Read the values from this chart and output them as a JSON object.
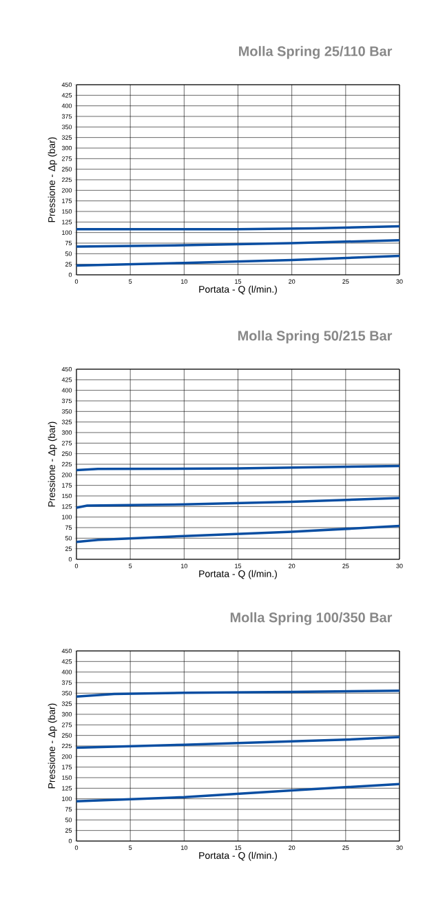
{
  "chart_data": [
    {
      "type": "line",
      "title": "Molla Spring   25/110 Bar",
      "xlabel": "Portata - Q (l/min.)",
      "ylabel": "Pressione -   Δp (bar)",
      "xlim": [
        0,
        30
      ],
      "ylim": [
        0,
        450
      ],
      "xticks": [
        0,
        5,
        10,
        15,
        20,
        25,
        30
      ],
      "yticks": [
        0,
        25,
        50,
        75,
        100,
        125,
        150,
        175,
        200,
        225,
        250,
        275,
        300,
        325,
        350,
        375,
        400,
        425,
        450
      ],
      "grid": true,
      "marker": "none",
      "line_style": "solid",
      "series": [
        {
          "color": "#0a4ea2",
          "x": [
            0,
            15,
            22,
            30
          ],
          "values": [
            108,
            108,
            110,
            115
          ]
        },
        {
          "color": "#0a4ea2",
          "x": [
            0,
            10,
            20,
            30
          ],
          "values": [
            67,
            70,
            75,
            82
          ]
        },
        {
          "color": "#0a4ea2",
          "x": [
            0,
            10,
            20,
            30
          ],
          "values": [
            22,
            28,
            35,
            45
          ]
        }
      ]
    },
    {
      "type": "line",
      "title": "Molla Spring   50/215 Bar",
      "xlabel": "Portata - Q (l/min.)",
      "ylabel": "Pressione -   Δp (bar)",
      "xlim": [
        0,
        30
      ],
      "ylim": [
        0,
        450
      ],
      "xticks": [
        0,
        5,
        10,
        15,
        20,
        25,
        30
      ],
      "yticks": [
        0,
        25,
        50,
        75,
        100,
        125,
        150,
        175,
        200,
        225,
        250,
        275,
        300,
        325,
        350,
        375,
        400,
        425,
        450
      ],
      "grid": true,
      "marker": "none",
      "line_style": "solid",
      "series": [
        {
          "color": "#0a4ea2",
          "x": [
            0,
            2,
            15,
            30
          ],
          "values": [
            211,
            214,
            215,
            221
          ]
        },
        {
          "color": "#0a4ea2",
          "x": [
            0,
            1,
            10,
            20,
            30
          ],
          "values": [
            122,
            127,
            130,
            136,
            145
          ]
        },
        {
          "color": "#0a4ea2",
          "x": [
            0,
            2,
            10,
            20,
            25,
            30
          ],
          "values": [
            41,
            46,
            55,
            65,
            72,
            79
          ]
        }
      ]
    },
    {
      "type": "line",
      "title": "Molla Spring   100/350 Bar",
      "xlabel": "Portata - Q (l/min.)",
      "ylabel": "Pressione -   Δp (bar)",
      "xlim": [
        0,
        30
      ],
      "ylim": [
        0,
        450
      ],
      "xticks": [
        0,
        5,
        10,
        15,
        20,
        25,
        30
      ],
      "yticks": [
        0,
        25,
        50,
        75,
        100,
        125,
        150,
        175,
        200,
        225,
        250,
        275,
        300,
        325,
        350,
        375,
        400,
        425,
        450
      ],
      "grid": true,
      "marker": "none",
      "line_style": "solid",
      "series": [
        {
          "color": "#0a4ea2",
          "x": [
            0,
            3.5,
            10,
            20,
            30
          ],
          "values": [
            342,
            348,
            351,
            353,
            356
          ]
        },
        {
          "color": "#0a4ea2",
          "x": [
            0,
            10,
            20,
            25,
            30
          ],
          "values": [
            221,
            228,
            236,
            240,
            246
          ]
        },
        {
          "color": "#0a4ea2",
          "x": [
            0,
            10,
            20,
            30
          ],
          "values": [
            94,
            104,
            120,
            135
          ]
        }
      ]
    }
  ]
}
